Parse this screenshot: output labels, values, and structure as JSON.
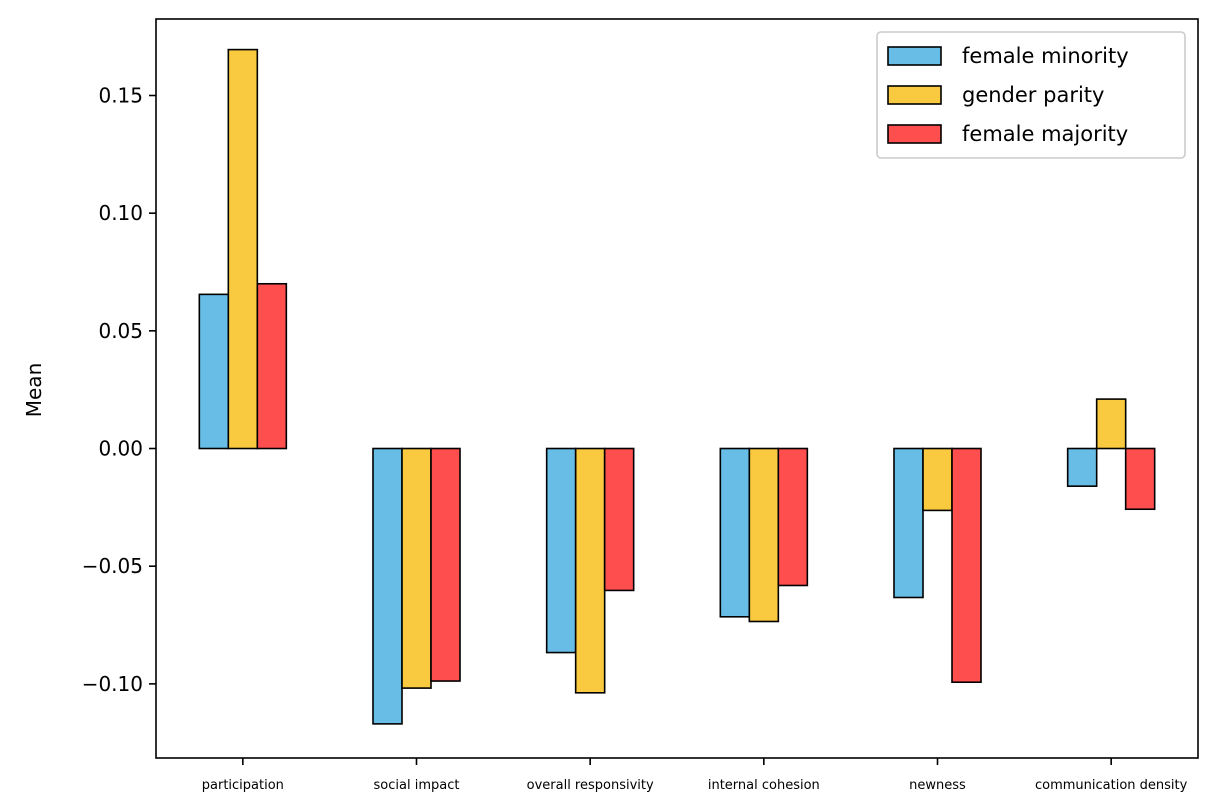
{
  "chart_data": {
    "type": "bar",
    "title": "",
    "xlabel": "",
    "ylabel": "Mean",
    "categories": [
      "participation",
      "social impact",
      "overall responsivity",
      "internal cohesion",
      "newness",
      "communication density"
    ],
    "series": [
      {
        "name": "female minority",
        "color": "#67bde5",
        "values": [
          0.0655,
          -0.117,
          -0.0867,
          -0.0715,
          -0.0633,
          -0.016
        ]
      },
      {
        "name": "gender parity",
        "color": "#f9c93f",
        "values": [
          0.1695,
          -0.1018,
          -0.1038,
          -0.0735,
          -0.0263,
          0.021
        ]
      },
      {
        "name": "female majority",
        "color": "#fe4f4e",
        "values": [
          0.07,
          -0.0988,
          -0.0603,
          -0.0582,
          -0.0993,
          -0.0258
        ]
      }
    ],
    "ylim": [
      -0.1315,
      0.1825
    ],
    "yticks": [
      -0.1,
      -0.05,
      0.0,
      0.05,
      0.1,
      0.15
    ],
    "ytick_labels": [
      "−0.10",
      "−0.05",
      "0.00",
      "0.05",
      "0.10",
      "0.15"
    ],
    "grid": false,
    "legend_position": "top-right",
    "bar_edge_color": "#000000"
  }
}
